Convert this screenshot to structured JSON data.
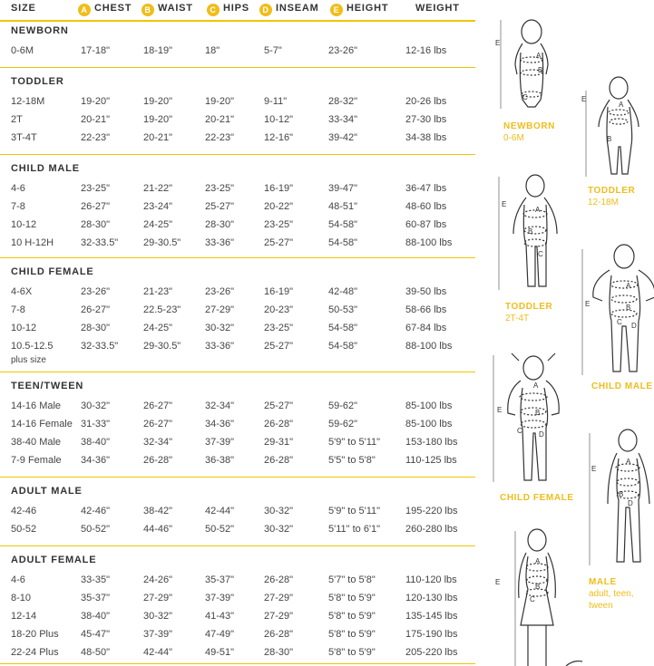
{
  "header": {
    "size": "SIZE",
    "chest": {
      "badge": "A",
      "label": "CHEST"
    },
    "waist": {
      "badge": "B",
      "label": "WAIST"
    },
    "hips": {
      "badge": "C",
      "label": "HIPS"
    },
    "inseam": {
      "badge": "D",
      "label": "INSEAM"
    },
    "height": {
      "badge": "E",
      "label": "HEIGHT"
    },
    "weight": "WEIGHT"
  },
  "sections": [
    {
      "title": "NEWBORN",
      "rows": [
        [
          "0-6M",
          "17-18\"",
          "18-19\"",
          "18\"",
          "5-7\"",
          "23-26\"",
          "12-16 lbs"
        ]
      ]
    },
    {
      "title": "TODDLER",
      "rows": [
        [
          "12-18M",
          "19-20\"",
          "19-20\"",
          "19-20\"",
          "9-11\"",
          "28-32\"",
          "20-26 lbs"
        ],
        [
          "2T",
          "20-21\"",
          "19-20\"",
          "20-21\"",
          "10-12\"",
          "33-34\"",
          "27-30 lbs"
        ],
        [
          "3T-4T",
          "22-23\"",
          "20-21\"",
          "22-23\"",
          "12-16\"",
          "39-42\"",
          "34-38 lbs"
        ]
      ]
    },
    {
      "title": "CHILD MALE",
      "rows": [
        [
          "4-6",
          "23-25\"",
          "21-22\"",
          "23-25\"",
          "16-19\"",
          "39-47\"",
          "36-47 lbs"
        ],
        [
          "7-8",
          "26-27\"",
          "23-24\"",
          "25-27\"",
          "20-22\"",
          "48-51\"",
          "48-60 lbs"
        ],
        [
          "10-12",
          "28-30\"",
          "24-25\"",
          "28-30\"",
          "23-25\"",
          "54-58\"",
          "60-87 lbs"
        ],
        [
          "10 H-12H",
          "32-33.5\"",
          "29-30.5\"",
          "33-36\"",
          "25-27\"",
          "54-58\"",
          "88-100 lbs"
        ]
      ]
    },
    {
      "title": "CHILD FEMALE",
      "rows": [
        [
          "4-6X",
          "23-26\"",
          "21-23\"",
          "23-26\"",
          "16-19\"",
          "42-48\"",
          "39-50 lbs"
        ],
        [
          "7-8",
          "26-27\"",
          "22.5-23\"",
          "27-29\"",
          "20-23\"",
          "50-53\"",
          "58-66 lbs"
        ],
        [
          "10-12",
          "28-30\"",
          "24-25\"",
          "30-32\"",
          "23-25\"",
          "54-58\"",
          "67-84 lbs"
        ],
        [
          "10.5-12.5",
          "32-33.5\"",
          "29-30.5\"",
          "33-36\"",
          "25-27\"",
          "54-58\"",
          "88-100 lbs"
        ]
      ],
      "note": "plus size"
    },
    {
      "title": "TEEN/TWEEN",
      "rows": [
        [
          "14-16 Male",
          "30-32\"",
          "26-27\"",
          "32-34\"",
          "25-27\"",
          "59-62\"",
          "85-100 lbs"
        ],
        [
          "14-16 Female",
          "31-33\"",
          "26-27\"",
          "34-36\"",
          "26-28\"",
          "59-62\"",
          "85-100 lbs"
        ],
        [
          "38-40 Male",
          "38-40\"",
          "32-34\"",
          "37-39\"",
          "29-31\"",
          "5'9\" to 5'11\"",
          "153-180 lbs"
        ],
        [
          "7-9 Female",
          "34-36\"",
          "26-28\"",
          "36-38\"",
          "26-28\"",
          "5'5\" to 5'8\"",
          "110-125 lbs"
        ]
      ]
    },
    {
      "title": "ADULT MALE",
      "rows": [
        [
          "42-46",
          "42-46\"",
          "38-42\"",
          "42-44\"",
          "30-32\"",
          "5'9\" to 5'11\"",
          "195-220 lbs"
        ],
        [
          "50-52",
          "50-52\"",
          "44-46\"",
          "50-52\"",
          "30-32\"",
          "5'11\" to 6'1\"",
          "260-280 lbs"
        ]
      ]
    },
    {
      "title": "ADULT FEMALE",
      "rows": [
        [
          "4-6",
          "33-35\"",
          "24-26\"",
          "35-37\"",
          "26-28\"",
          "5'7\" to 5'8\"",
          "110-120 lbs"
        ],
        [
          "8-10",
          "35-37\"",
          "27-29\"",
          "37-39\"",
          "27-29\"",
          "5'8\" to 5'9\"",
          "120-130 lbs"
        ],
        [
          "12-14",
          "38-40\"",
          "30-32\"",
          "41-43\"",
          "27-29\"",
          "5'8\" to 5'9\"",
          "135-145 lbs"
        ],
        [
          "18-20 Plus",
          "45-47\"",
          "37-39\"",
          "47-49\"",
          "26-28\"",
          "5'8\" to 5'9\"",
          "175-190 lbs"
        ],
        [
          "22-24 Plus",
          "48-50\"",
          "42-44\"",
          "49-51\"",
          "28-30\"",
          "5'8\" to 5'9\"",
          "205-220 lbs"
        ]
      ]
    }
  ],
  "figures": {
    "newborn": {
      "title": "NEWBORN",
      "sub": "0-6M"
    },
    "toddler_small": {
      "title": "TODDLER",
      "sub": "12-18M"
    },
    "toddler_large": {
      "title": "TODDLER",
      "sub": "2T-4T"
    },
    "child_male": {
      "title": "CHILD MALE"
    },
    "child_female": {
      "title": "CHILD FEMALE"
    },
    "male": {
      "title": "MALE",
      "sub1": "adult, teen,",
      "sub2": "tween"
    },
    "markers": {
      "a": "A",
      "b": "B",
      "c": "C",
      "d": "D",
      "e": "E"
    }
  },
  "colors": {
    "accent": "#f0bd1a",
    "divider": "#f2c400",
    "text": "#333333"
  }
}
